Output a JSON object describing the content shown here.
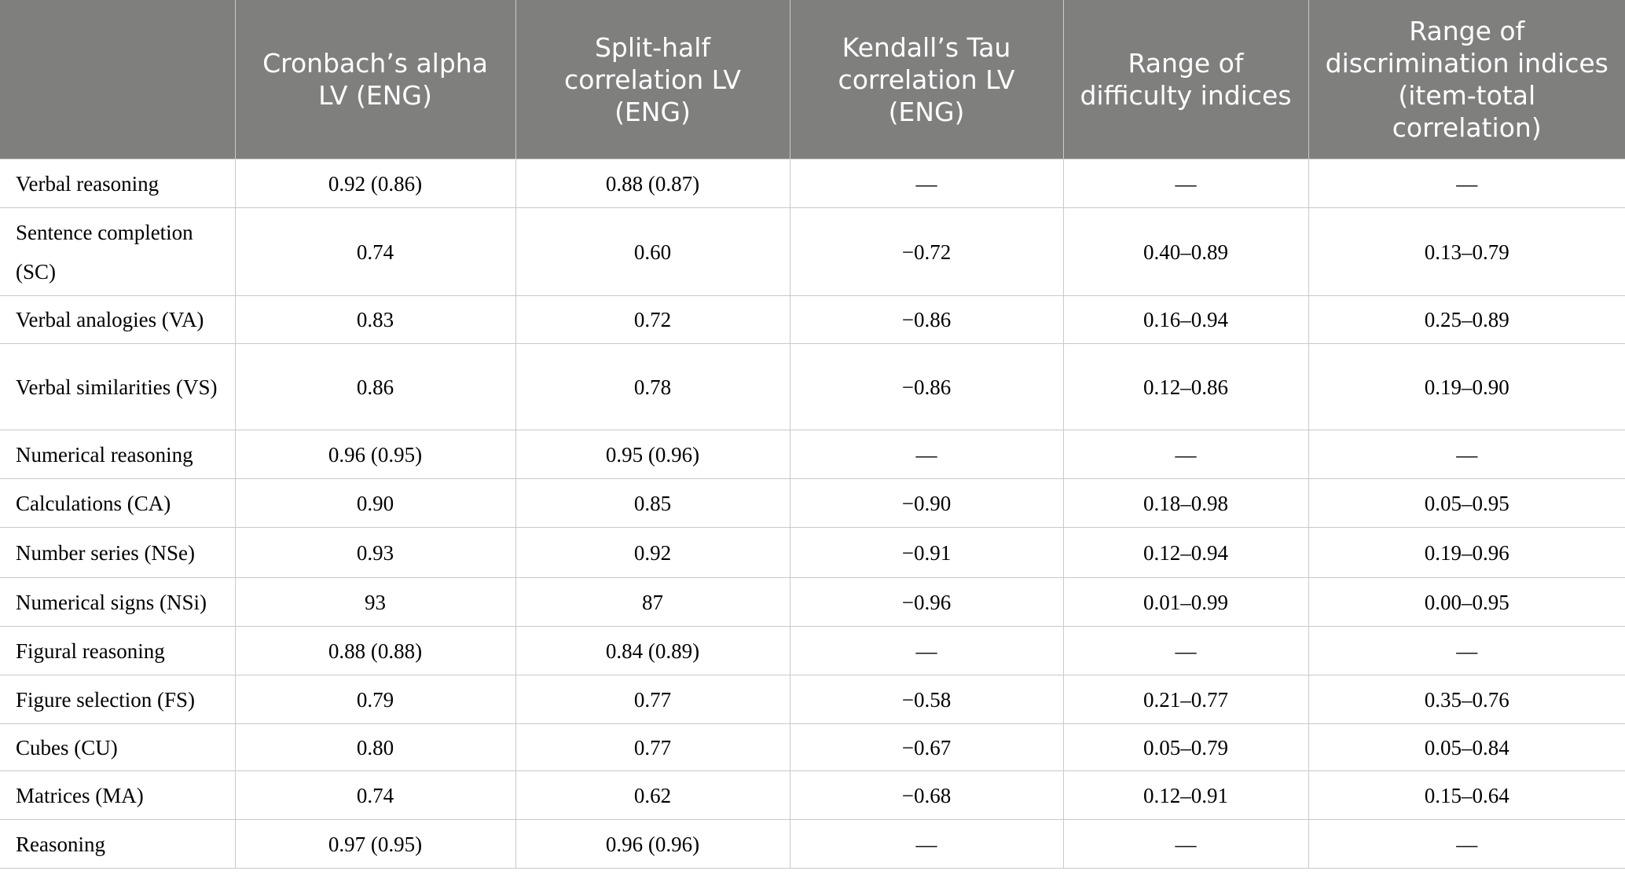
{
  "table": {
    "header": [
      "",
      "Cronbach’s alpha LV (ENG)",
      "Split-half correlation LV (ENG)",
      "Kendall’s Tau correlation LV (ENG)",
      "Range of difficulty indices",
      "Range of discrimination indices (item-total correlation)"
    ],
    "rows": [
      [
        "Verbal reasoning",
        "0.92 (0.86)",
        "0.88 (0.87)",
        "—",
        "—",
        "—"
      ],
      [
        "Sentence completion (SC)",
        "0.74",
        "0.60",
        "−0.72",
        "0.40–0.89",
        "0.13–0.79"
      ],
      [
        "Verbal analogies (VA)",
        "0.83",
        "0.72",
        "−0.86",
        "0.16–0.94",
        "0.25–0.89"
      ],
      [
        "Verbal similarities (VS)",
        "0.86",
        "0.78",
        "−0.86",
        "0.12–0.86",
        "0.19–0.90"
      ],
      [
        "Numerical reasoning",
        "0.96 (0.95)",
        "0.95 (0.96)",
        "—",
        "—",
        "—"
      ],
      [
        "Calculations (CA)",
        "0.90",
        "0.85",
        "−0.90",
        "0.18–0.98",
        "0.05–0.95"
      ],
      [
        "Number series (NSe)",
        "0.93",
        "0.92",
        "−0.91",
        "0.12–0.94",
        "0.19–0.96"
      ],
      [
        "Numerical signs (NSi)",
        "93",
        "87",
        "−0.96",
        "0.01–0.99",
        "0.00–0.95"
      ],
      [
        "Figural reasoning",
        "0.88 (0.88)",
        "0.84 (0.89)",
        "—",
        "—",
        "—"
      ],
      [
        "Figure selection (FS)",
        "0.79",
        "0.77",
        "−0.58",
        "0.21–0.77",
        "0.35–0.76"
      ],
      [
        "Cubes (CU)",
        "0.80",
        "0.77",
        "−0.67",
        "0.05–0.79",
        "0.05–0.84"
      ],
      [
        "Matrices (MA)",
        "0.74",
        "0.62",
        "−0.68",
        "0.12–0.91",
        "0.15–0.64"
      ],
      [
        "Reasoning",
        "0.97 (0.95)",
        "0.96 (0.96)",
        "—",
        "—",
        "—"
      ]
    ]
  }
}
